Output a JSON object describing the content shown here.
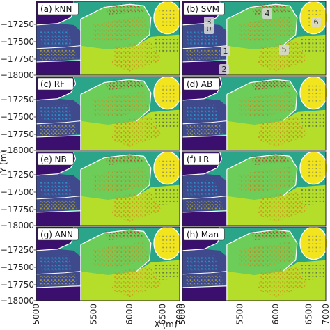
{
  "figure": {
    "y_axis_label": "Y (m)",
    "x_axis_label": "X (m)",
    "y_ticks": [
      "-17250",
      "-17500",
      "-17750",
      "-18000"
    ],
    "x_ticks": [
      "5000",
      "5500",
      "6000",
      "6500",
      "7000"
    ]
  },
  "panels": [
    {
      "label": "(a) kNN"
    },
    {
      "label": "(b) SVM"
    },
    {
      "label": "(c) RF"
    },
    {
      "label": "(d) AB"
    },
    {
      "label": "(e) NB"
    },
    {
      "label": "(f) LR"
    },
    {
      "label": "(g) ANN"
    },
    {
      "label": "(h) Man"
    }
  ],
  "zone_numbers": [
    "0",
    "1",
    "2",
    "3",
    "4",
    "5",
    "6"
  ],
  "colors": {
    "dark_purple": "#3b0f6e",
    "indigo": "#3e4a8c",
    "teal": "#2aa58a",
    "green": "#6ccd59",
    "yellow_green": "#b5de2b",
    "yellow": "#f2e51d",
    "orange_dots": "#e08a1a",
    "red_dots": "#c0392b",
    "blue_dots": "#2a9fd6",
    "olive_dots": "#b8a830",
    "white_boundary": "#ffffff"
  }
}
